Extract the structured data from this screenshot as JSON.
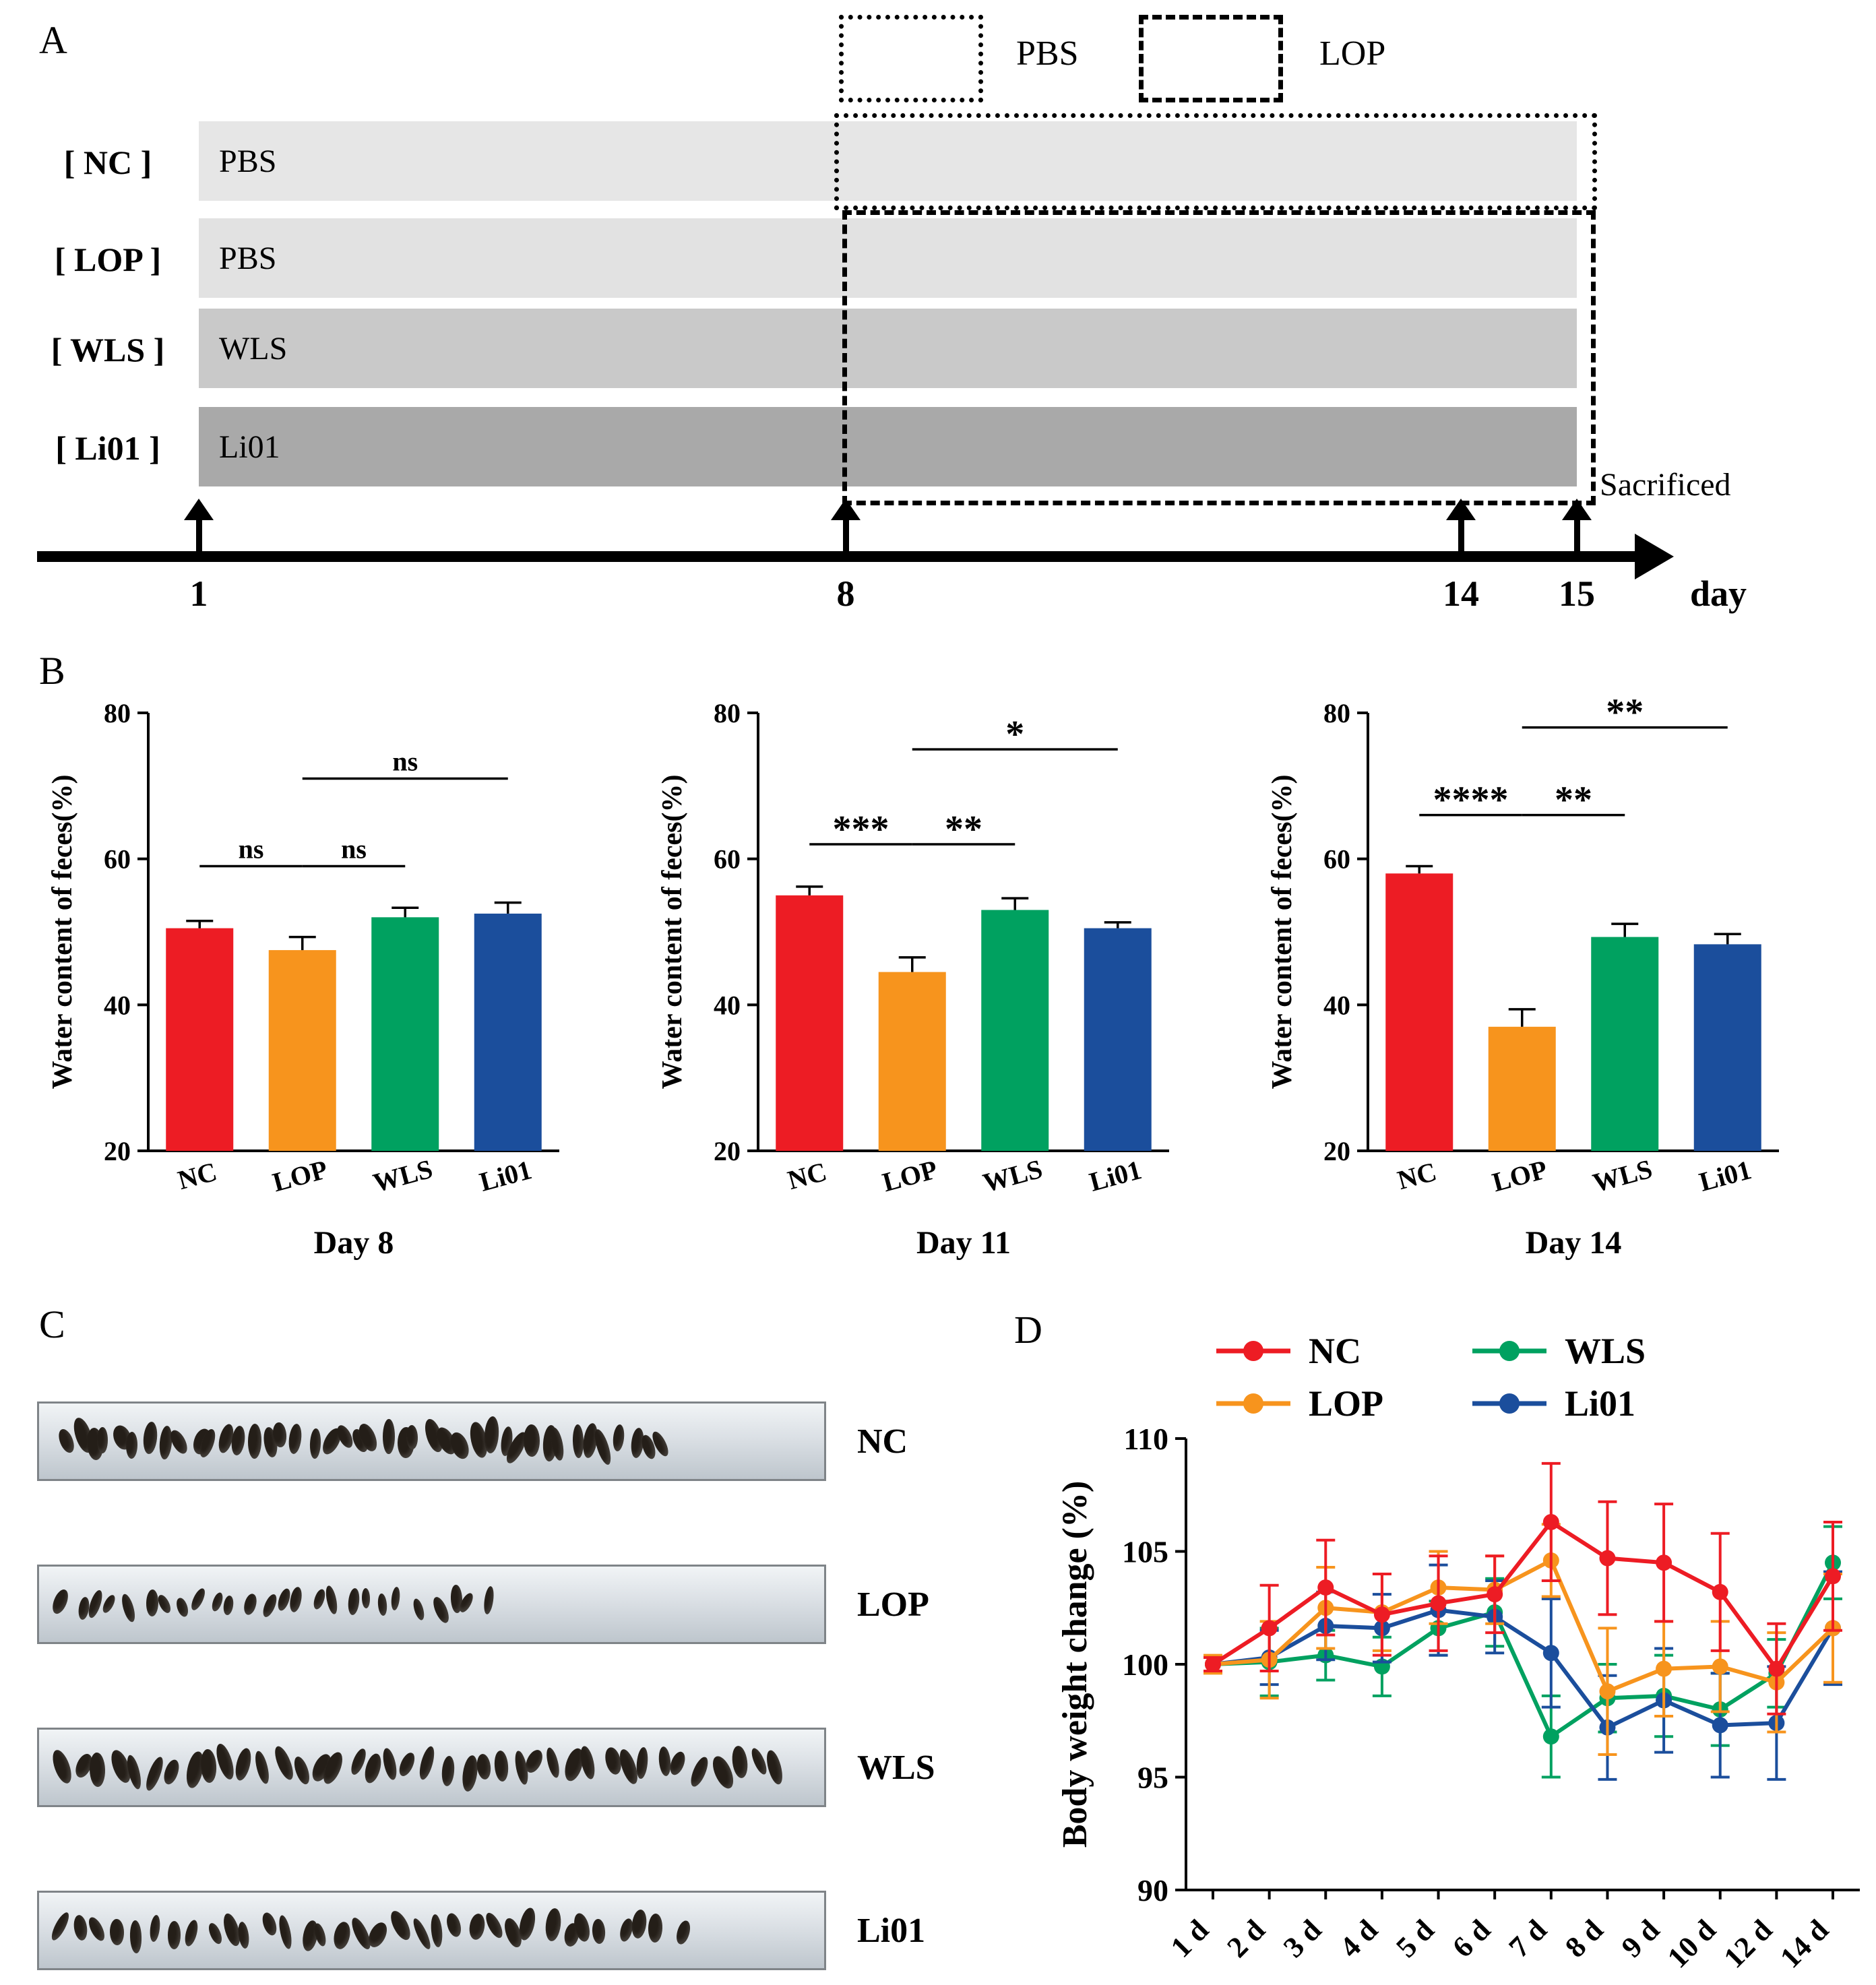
{
  "panels": {
    "a": {
      "label": "A",
      "legend": {
        "pbs": "PBS",
        "lop": "LOP"
      },
      "rows": [
        {
          "group": "[ NC ]",
          "bar_label": "PBS",
          "color": "#e6e6e6"
        },
        {
          "group": "[ LOP ]",
          "bar_label": "PBS",
          "color": "#e2e2e2"
        },
        {
          "group": "[ WLS ]",
          "bar_label": "WLS",
          "color": "#c9c9c9"
        },
        {
          "group": "[ Li01 ]",
          "bar_label": "Li01",
          "color": "#a9a9a9"
        }
      ],
      "sacrificed": "Sacrificed",
      "ticks": [
        "1",
        "8",
        "14",
        "15"
      ],
      "axis_unit": "day"
    },
    "b": {
      "label": "B"
    },
    "c": {
      "label": "C",
      "rows": [
        {
          "label": "NC",
          "pellet_count": 42,
          "spread": 0.82,
          "size_scale": 1.0
        },
        {
          "label": "LOP",
          "pellet_count": 26,
          "spread": 0.58,
          "size_scale": 0.78
        },
        {
          "label": "WLS",
          "pellet_count": 40,
          "spread": 0.97,
          "size_scale": 1.0
        },
        {
          "label": "Li01",
          "pellet_count": 34,
          "spread": 0.84,
          "size_scale": 0.92
        }
      ]
    },
    "d": {
      "label": "D"
    }
  },
  "group_colors": {
    "NC": "#ed1c24",
    "LOP": "#f7941d",
    "WLS": "#00a160",
    "Li01": "#1b4e9c"
  },
  "chart_data": [
    {
      "id": "day8",
      "type": "bar",
      "title": "Day 8",
      "ylabel": "Water content of feces(%)",
      "ylim": [
        20,
        80
      ],
      "yticks": [
        20,
        40,
        60,
        80
      ],
      "categories": [
        "NC",
        "LOP",
        "WLS",
        "Li01"
      ],
      "values": [
        50.5,
        47.5,
        52.0,
        52.5
      ],
      "errors": [
        1.0,
        1.8,
        1.3,
        1.5
      ],
      "colors": [
        "#ed1c24",
        "#f7941d",
        "#00a160",
        "#1b4e9c"
      ],
      "significance": [
        {
          "from": 0,
          "to": 1,
          "y": 59,
          "label": "ns"
        },
        {
          "from": 1,
          "to": 2,
          "y": 59,
          "label": "ns"
        },
        {
          "from": 1,
          "to": 3,
          "y": 71,
          "label": "ns"
        }
      ]
    },
    {
      "id": "day11",
      "type": "bar",
      "title": "Day 11",
      "ylabel": "Water content of feces(%)",
      "ylim": [
        20,
        80
      ],
      "yticks": [
        20,
        40,
        60,
        80
      ],
      "categories": [
        "NC",
        "LOP",
        "WLS",
        "Li01"
      ],
      "values": [
        55.0,
        44.5,
        53.0,
        50.5
      ],
      "errors": [
        1.2,
        2.0,
        1.6,
        0.8
      ],
      "colors": [
        "#ed1c24",
        "#f7941d",
        "#00a160",
        "#1b4e9c"
      ],
      "significance": [
        {
          "from": 0,
          "to": 1,
          "y": 62,
          "label": "***"
        },
        {
          "from": 1,
          "to": 2,
          "y": 62,
          "label": "**"
        },
        {
          "from": 1,
          "to": 3,
          "y": 75,
          "label": "*"
        }
      ]
    },
    {
      "id": "day14",
      "type": "bar",
      "title": "Day 14",
      "ylabel": "Water content of feces(%)",
      "ylim": [
        20,
        80
      ],
      "yticks": [
        20,
        40,
        60,
        80
      ],
      "categories": [
        "NC",
        "LOP",
        "WLS",
        "Li01"
      ],
      "values": [
        58.0,
        37.0,
        49.3,
        48.3
      ],
      "errors": [
        1.0,
        2.4,
        1.8,
        1.4
      ],
      "colors": [
        "#ed1c24",
        "#f7941d",
        "#00a160",
        "#1b4e9c"
      ],
      "significance": [
        {
          "from": 0,
          "to": 1,
          "y": 66,
          "label": "****"
        },
        {
          "from": 1,
          "to": 2,
          "y": 66,
          "label": "**"
        },
        {
          "from": 1,
          "to": 3,
          "y": 78,
          "label": "**"
        }
      ]
    },
    {
      "id": "bodyweight",
      "type": "line",
      "ylabel": "Body weight change (%)",
      "ylim": [
        90,
        110
      ],
      "yticks": [
        90,
        95,
        100,
        105,
        110
      ],
      "x": [
        "1 d",
        "2 d",
        "3 d",
        "4 d",
        "5 d",
        "6 d",
        "7 d",
        "8 d",
        "9 d",
        "10 d",
        "12 d",
        "14 d"
      ],
      "legend_rows": [
        [
          "NC",
          "WLS"
        ],
        [
          "LOP",
          "Li01"
        ]
      ],
      "series": [
        {
          "name": "NC",
          "color": "#ed1c24",
          "values": [
            100,
            101.6,
            103.4,
            102.2,
            102.7,
            103.1,
            106.3,
            104.7,
            104.5,
            103.2,
            99.8,
            103.9
          ],
          "errors": [
            0.3,
            1.9,
            2.1,
            1.8,
            2.1,
            1.7,
            2.6,
            2.5,
            2.6,
            2.6,
            2.0,
            2.4
          ]
        },
        {
          "name": "LOP",
          "color": "#f7941d",
          "values": [
            100,
            100.2,
            102.5,
            102.3,
            103.4,
            103.3,
            104.6,
            98.8,
            99.8,
            99.9,
            99.2,
            101.6
          ],
          "errors": [
            0.4,
            1.7,
            1.8,
            1.7,
            1.6,
            1.5,
            1.6,
            2.8,
            2.1,
            2.0,
            2.2,
            2.4
          ]
        },
        {
          "name": "WLS",
          "color": "#00a160",
          "values": [
            100,
            100.1,
            100.4,
            99.9,
            101.6,
            102.3,
            96.8,
            98.5,
            98.6,
            98.0,
            99.6,
            104.5
          ],
          "errors": [
            0.3,
            1.5,
            1.1,
            1.3,
            1.2,
            1.5,
            1.8,
            1.5,
            1.8,
            1.6,
            1.5,
            1.6
          ]
        },
        {
          "name": "Li01",
          "color": "#1b4e9c",
          "values": [
            100,
            100.3,
            101.7,
            101.6,
            102.4,
            102.1,
            100.5,
            97.2,
            98.4,
            97.3,
            97.4,
            101.6
          ],
          "errors": [
            0.3,
            1.2,
            1.5,
            1.5,
            2.0,
            1.6,
            2.4,
            2.3,
            2.3,
            2.3,
            2.5,
            2.5
          ]
        }
      ]
    }
  ]
}
